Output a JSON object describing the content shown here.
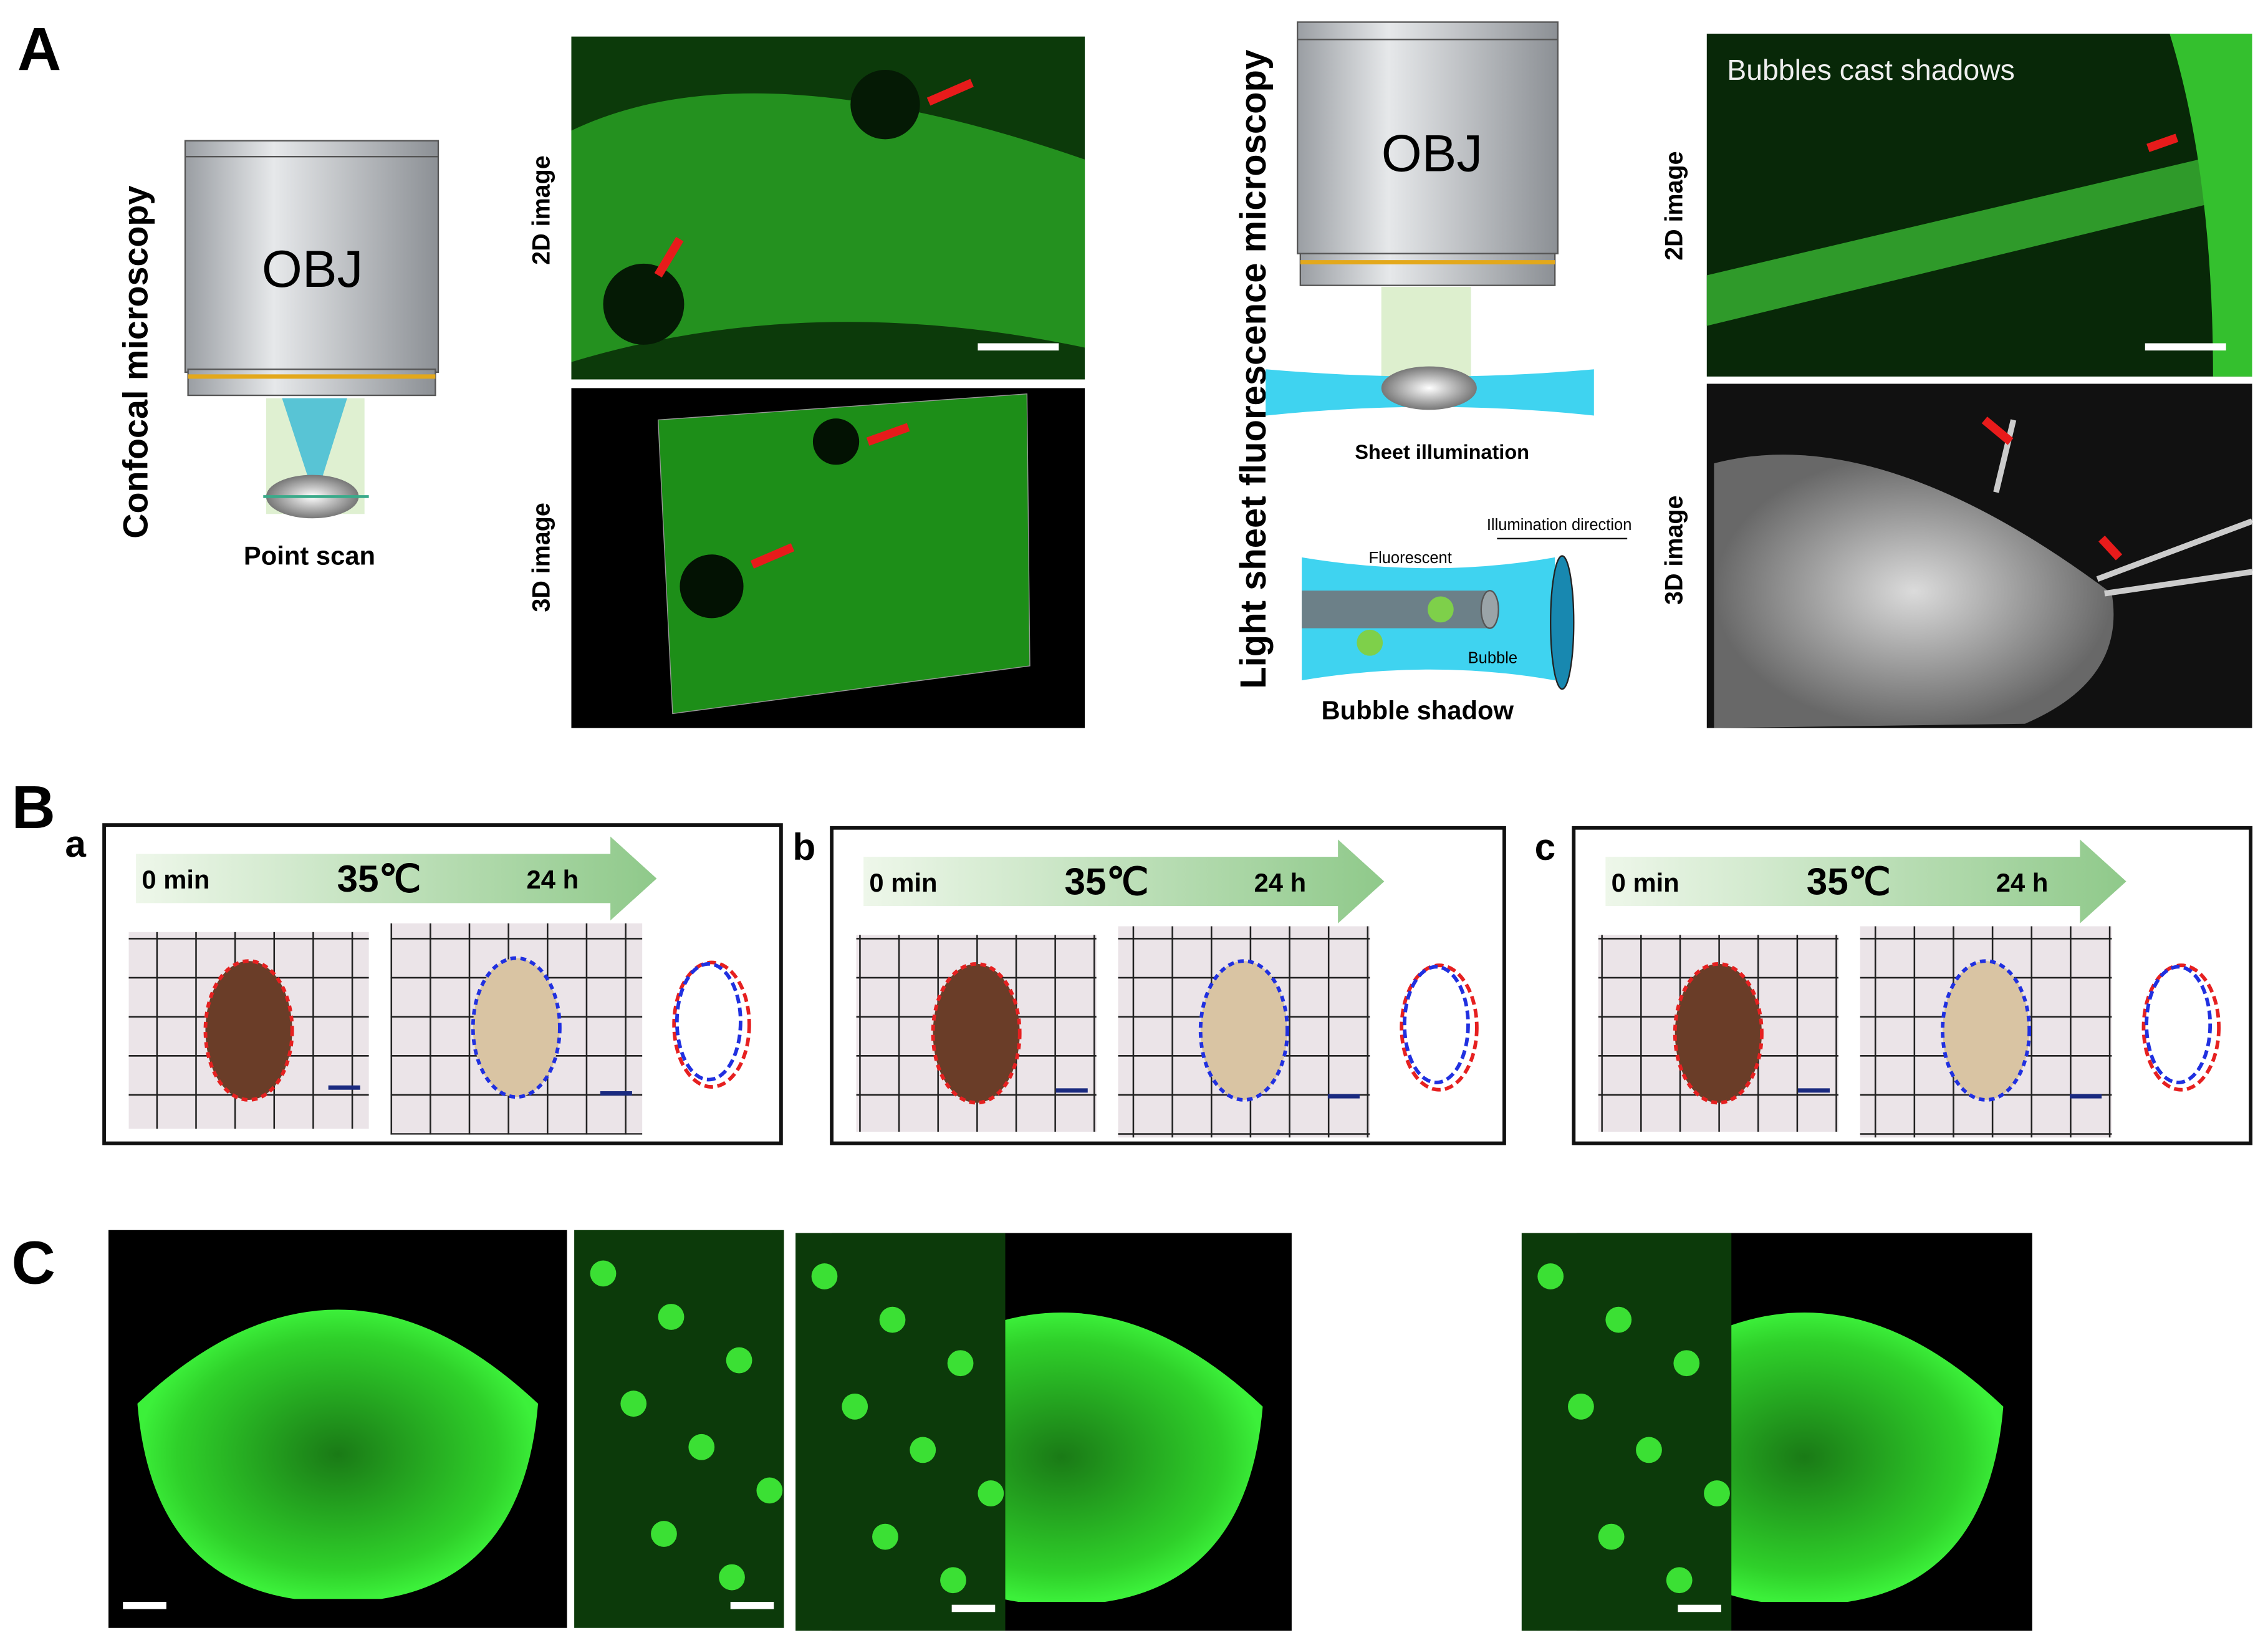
{
  "panels": {
    "A": {
      "label": "A",
      "confocal": {
        "title": "Confocal microscopy",
        "objective": "OBJ",
        "caption": "Point scan",
        "image_labels": [
          "2D image",
          "3D image"
        ]
      },
      "lightsheet": {
        "title": "Light sheet fluorescence microscopy",
        "objective": "OBJ",
        "sheet_caption": "Sheet illumination",
        "fluorescent": "Fluorescent",
        "direction": "Illumination direction",
        "bubble": "Bubble",
        "shadow_caption": "Bubble shadow",
        "image_labels": [
          "2D image",
          "3D image"
        ],
        "image_title": "Bubbles cast shadows"
      }
    },
    "B": {
      "label": "B",
      "subpanels": [
        {
          "label": "a",
          "start": "0 min",
          "temperature": "35℃",
          "end": "24 h"
        },
        {
          "label": "b",
          "start": "0 min",
          "temperature": "35℃",
          "end": "24 h"
        },
        {
          "label": "c",
          "start": "0 min",
          "temperature": "35℃",
          "end": "24 h"
        }
      ]
    },
    "C": {
      "label": "C"
    }
  }
}
